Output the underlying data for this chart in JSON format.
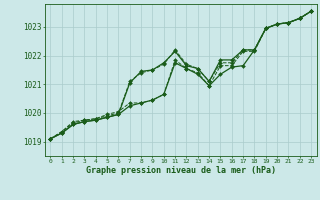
{
  "title": "Graphe pression niveau de la mer (hPa)",
  "bg_color": "#cce8e8",
  "grid_color": "#aacccc",
  "line_color": "#1a5c1a",
  "marker_color": "#1a5c1a",
  "xlim": [
    -0.5,
    23.5
  ],
  "ylim": [
    1018.5,
    1023.8
  ],
  "yticks": [
    1019,
    1020,
    1021,
    1022,
    1023
  ],
  "xticks": [
    0,
    1,
    2,
    3,
    4,
    5,
    6,
    7,
    8,
    9,
    10,
    11,
    12,
    13,
    14,
    15,
    16,
    17,
    18,
    19,
    20,
    21,
    22,
    23
  ],
  "series": [
    {
      "data": [
        1019.1,
        1019.3,
        1019.6,
        1019.7,
        1019.75,
        1019.85,
        1019.95,
        1021.05,
        1021.45,
        1021.5,
        1021.75,
        1022.15,
        1021.65,
        1021.55,
        1021.1,
        1021.85,
        1021.85,
        1022.2,
        1022.2,
        1022.95,
        1023.1,
        1023.15,
        1023.3,
        1023.55
      ],
      "linestyle": "-",
      "linewidth": 0.9
    },
    {
      "data": [
        1019.1,
        1019.35,
        1019.65,
        1019.75,
        1019.8,
        1019.95,
        1020.05,
        1020.35,
        1020.35,
        1020.45,
        1020.65,
        1021.85,
        1021.55,
        1021.4,
        1020.95,
        1021.65,
        1021.65,
        1022.15,
        1022.15,
        1022.95,
        1023.1,
        1023.15,
        1023.3,
        1023.55
      ],
      "linestyle": "--",
      "linewidth": 0.7
    },
    {
      "data": [
        1019.1,
        1019.35,
        1019.7,
        1019.75,
        1019.8,
        1019.9,
        1020.0,
        1021.1,
        1021.4,
        1021.5,
        1021.7,
        1022.2,
        1021.7,
        1021.55,
        1021.1,
        1021.75,
        1021.75,
        1022.2,
        1022.2,
        1022.95,
        1023.1,
        1023.15,
        1023.3,
        1023.55
      ],
      "linestyle": "--",
      "linewidth": 0.7
    },
    {
      "data": [
        1019.1,
        1019.3,
        1019.6,
        1019.7,
        1019.75,
        1019.85,
        1019.95,
        1020.25,
        1020.35,
        1020.45,
        1020.65,
        1021.75,
        1021.55,
        1021.35,
        1020.95,
        1021.35,
        1021.6,
        1021.65,
        1022.2,
        1022.95,
        1023.1,
        1023.15,
        1023.3,
        1023.55
      ],
      "linestyle": "-",
      "linewidth": 0.9
    }
  ]
}
